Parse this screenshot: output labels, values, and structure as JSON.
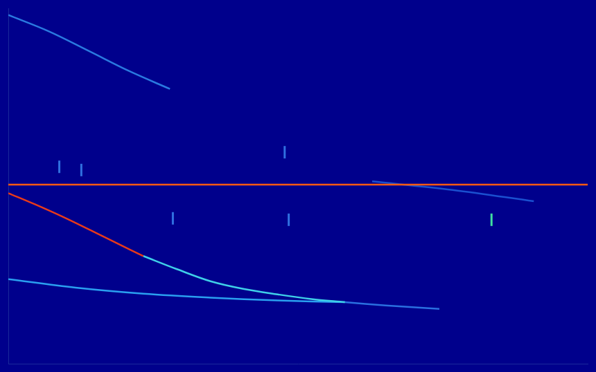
{
  "chart_data": {
    "type": "line",
    "xlim": [
      0,
      100
    ],
    "ylim": [
      0,
      100
    ],
    "grid": false,
    "tick_labels": false,
    "series": [
      {
        "type": "line",
        "color": "#ff5a10",
        "x": [
          0,
          100
        ],
        "values": [
          50.4,
          50.4
        ]
      },
      {
        "type": "line",
        "color": "#e83a1a",
        "x": [
          0,
          4.65,
          9.3,
          14.0,
          18.6,
          23.3
        ],
        "values": [
          48.0,
          44.8,
          41.4,
          37.7,
          34.0,
          30.3
        ]
      },
      {
        "type": "line",
        "color": "#3fd0e8",
        "x": [
          23.3,
          29.1,
          34.9,
          40.7,
          46.5,
          52.3,
          58.1
        ],
        "values": [
          30.3,
          26.6,
          23.2,
          21.0,
          19.5,
          18.2,
          17.3
        ]
      },
      {
        "type": "line",
        "color": "#2a70e0",
        "x": [
          58.1,
          65.1,
          74.4
        ],
        "values": [
          17.3,
          16.4,
          15.4
        ]
      },
      {
        "type": "line",
        "color": "#2aa0f0",
        "x": [
          0,
          11.6,
          23.3,
          34.9,
          46.5,
          58.1
        ],
        "values": [
          23.8,
          21.4,
          19.7,
          18.6,
          17.8,
          17.3
        ]
      },
      {
        "type": "line",
        "color": "#2a7ae0",
        "x": [
          0,
          7.0,
          14.0,
          20.9,
          27.9
        ],
        "values": [
          98.1,
          93.5,
          87.9,
          82.3,
          77.3
        ]
      },
      {
        "type": "line",
        "color": "#1a50d0",
        "x": [
          62.8,
          76.7,
          90.7
        ],
        "values": [
          51.3,
          48.9,
          45.7
        ]
      },
      {
        "type": "scatter",
        "color": "#40e0a0",
        "marker": "line",
        "x": [
          83.4
        ],
        "values": [
          40.5
        ]
      },
      {
        "type": "scatter",
        "color": "#3070e0",
        "marker": "line",
        "x": [
          48.4,
          28.4,
          47.7,
          8.8,
          12.6
        ],
        "values": [
          40.5,
          40.9,
          59.5,
          55.4,
          54.5
        ]
      }
    ]
  }
}
